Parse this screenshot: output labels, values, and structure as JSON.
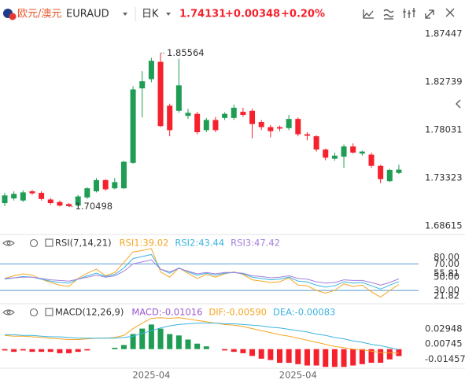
{
  "header": {
    "pair": "欧元/澳元",
    "symbol": "EURAUD",
    "period": "日K",
    "price": "1.74131",
    "change": "+0.00348",
    "change_pct": "+0.20%"
  },
  "chart_data": [
    {
      "type": "candlestick",
      "categories": [
        null,
        null,
        null,
        null,
        null,
        null,
        null,
        null,
        null,
        null,
        null,
        null,
        null,
        null,
        null,
        null,
        "2025-04",
        null,
        null,
        null,
        null,
        null,
        null,
        null,
        null,
        null,
        null,
        null,
        null,
        null,
        null,
        null,
        "2025-04",
        null,
        null,
        null,
        null,
        null,
        null,
        null,
        null,
        null,
        null,
        null
      ],
      "open": [
        1.7085,
        1.713,
        1.711,
        1.72,
        1.7185,
        1.712,
        1.7095,
        1.7075,
        1.706,
        1.714,
        1.72,
        1.731,
        1.723,
        1.723,
        1.748,
        1.821,
        1.83,
        1.847,
        1.804,
        1.799,
        1.794,
        1.796,
        1.78,
        1.79,
        1.792,
        1.792,
        1.798,
        1.799,
        1.788,
        1.783,
        1.783,
        1.782,
        1.791,
        1.776,
        1.774,
        1.761,
        1.752,
        1.754,
        1.764,
        1.757,
        1.756,
        1.745,
        1.73,
        1.738
      ],
      "high": [
        1.7185,
        1.72,
        1.721,
        1.7215,
        1.72,
        1.7135,
        1.711,
        1.7085,
        1.7165,
        1.724,
        1.733,
        1.732,
        1.733,
        1.75,
        1.823,
        1.838,
        1.851,
        1.85564,
        1.806,
        1.85,
        1.801,
        1.798,
        1.792,
        1.793,
        1.7975,
        1.805,
        1.802,
        1.801,
        1.79,
        1.785,
        1.7845,
        1.795,
        1.7925,
        1.778,
        1.775,
        1.762,
        1.758,
        1.766,
        1.767,
        1.76,
        1.758,
        1.746,
        1.742,
        1.746
      ],
      "low": [
        1.7055,
        1.711,
        1.7095,
        1.7165,
        1.711,
        1.707,
        1.7052,
        1.70498,
        1.7052,
        1.7125,
        1.719,
        1.7205,
        1.722,
        1.7225,
        1.747,
        1.7925,
        1.827,
        1.783,
        1.774,
        1.797,
        1.791,
        1.776,
        1.778,
        1.778,
        1.79,
        1.79,
        1.793,
        1.772,
        1.78,
        1.773,
        1.779,
        1.78,
        1.774,
        1.77,
        1.759,
        1.7505,
        1.75,
        1.743,
        1.757,
        1.755,
        1.743,
        1.728,
        1.729,
        1.737
      ],
      "close": [
        1.716,
        1.7175,
        1.719,
        1.718,
        1.7125,
        1.7085,
        1.706,
        1.7055,
        1.715,
        1.723,
        1.731,
        1.722,
        1.729,
        1.749,
        1.82,
        1.828,
        1.848,
        1.784,
        1.78,
        1.824,
        1.797,
        1.778,
        1.79,
        1.78,
        1.796,
        1.802,
        1.795,
        1.786,
        1.783,
        1.779,
        1.7815,
        1.791,
        1.776,
        1.7745,
        1.761,
        1.753,
        1.755,
        1.764,
        1.758,
        1.759,
        1.745,
        1.732,
        1.741,
        1.74131
      ],
      "up_color": "#1f9d55",
      "down_color": "#f5222d",
      "ylim": [
        1.67998,
        1.8845
      ],
      "yticks": [
        1.87447,
        1.82739,
        1.78031,
        1.73323,
        1.68615
      ]
    },
    {
      "type": "line",
      "title": "RSI(7,14,21)",
      "series": [
        {
          "name": "RSI1:39.02",
          "color": "#f5a623",
          "values": [
            48,
            52,
            55,
            53,
            47,
            42,
            38,
            36,
            48,
            56,
            62,
            52,
            57,
            72,
            88,
            90,
            93,
            58,
            50,
            64,
            56,
            48,
            54,
            50,
            55,
            58,
            54,
            46,
            44,
            42,
            43,
            49,
            38,
            37,
            30,
            26,
            30,
            40,
            36,
            38,
            28,
            20,
            30,
            39.02
          ]
        },
        {
          "name": "RSI2:43.44",
          "color": "#3cb4e0",
          "values": [
            47,
            49,
            51,
            50,
            47,
            44,
            42,
            41,
            47,
            52,
            56,
            51,
            54,
            64,
            78,
            81,
            84,
            62,
            56,
            64,
            58,
            53,
            56,
            53,
            56,
            57,
            55,
            50,
            48,
            46,
            47,
            50,
            44,
            43,
            38,
            35,
            37,
            43,
            41,
            42,
            37,
            32,
            38,
            43.44
          ]
        },
        {
          "name": "RSI3:47.42",
          "color": "#a37fdc",
          "values": [
            48,
            49,
            50,
            50,
            48,
            46,
            45,
            44,
            47,
            50,
            53,
            50,
            52,
            59,
            70,
            73,
            76,
            62,
            58,
            63,
            59,
            55,
            57,
            55,
            57,
            57,
            56,
            52,
            51,
            49,
            50,
            52,
            48,
            47,
            43,
            41,
            42,
            46,
            45,
            45,
            42,
            38,
            42,
            47.42
          ]
        }
      ],
      "levels": [
        70,
        30
      ],
      "level_color": "#5b9bd5",
      "ylim": [
        10,
        100
      ],
      "yticks": [
        {
          "value": 80,
          "label": "80.00"
        },
        {
          "value": 70,
          "label": "70.00"
        },
        55.81,
        {
          "value": 50,
          "label": "50.00"
        },
        {
          "value": 30,
          "label": "30.00"
        },
        21.82
      ]
    },
    {
      "type": "macd",
      "title": "MACD(12,26,9)",
      "histogram": {
        "name": "MACD:-0.01016",
        "color": "#9b59d0",
        "up_color": "#1f9d55",
        "down_color": "#f5222d",
        "values": [
          -0.002,
          -0.004,
          -0.002,
          -0.004,
          -0.004,
          -0.004,
          -0.006,
          -0.006,
          -0.004,
          -0.002,
          0,
          0,
          0.002,
          0.006,
          0.022,
          0.03,
          0.036,
          0.03,
          0.022,
          0.02,
          0.014,
          0.008,
          0.004,
          0,
          -0.002,
          -0.004,
          -0.006,
          -0.01,
          -0.014,
          -0.016,
          -0.02,
          -0.02,
          -0.022,
          -0.024,
          -0.024,
          -0.026,
          -0.026,
          -0.026,
          -0.024,
          -0.022,
          -0.02,
          -0.02,
          -0.015,
          -0.01016
        ]
      },
      "series": [
        {
          "name": "DIF:-0.00590",
          "color": "#f5a623",
          "values": [
            0.02,
            0.019,
            0.019,
            0.018,
            0.017,
            0.016,
            0.015,
            0.014,
            0.014,
            0.015,
            0.016,
            0.016,
            0.017,
            0.02,
            0.03,
            0.038,
            0.045,
            0.046,
            0.045,
            0.046,
            0.044,
            0.042,
            0.04,
            0.038,
            0.036,
            0.035,
            0.033,
            0.03,
            0.027,
            0.024,
            0.021,
            0.019,
            0.016,
            0.013,
            0.01,
            0.007,
            0.004,
            0.002,
            0.0,
            -0.001,
            -0.003,
            -0.005,
            -0.0055,
            -0.0059
          ]
        },
        {
          "name": "DEA:-0.00083",
          "color": "#3cb4e0",
          "values": [
            0.021,
            0.021,
            0.02,
            0.02,
            0.019,
            0.018,
            0.018,
            0.017,
            0.016,
            0.016,
            0.016,
            0.016,
            0.016,
            0.017,
            0.019,
            0.023,
            0.027,
            0.031,
            0.034,
            0.036,
            0.037,
            0.038,
            0.038,
            0.038,
            0.037,
            0.037,
            0.036,
            0.035,
            0.034,
            0.032,
            0.031,
            0.029,
            0.027,
            0.025,
            0.022,
            0.02,
            0.017,
            0.015,
            0.012,
            0.01,
            0.007,
            0.005,
            0.002,
            -0.00083
          ]
        }
      ],
      "ylim": [
        -0.028,
        0.056
      ],
      "yticks": [
        0.02948,
        0.00745,
        -0.01457
      ]
    }
  ]
}
